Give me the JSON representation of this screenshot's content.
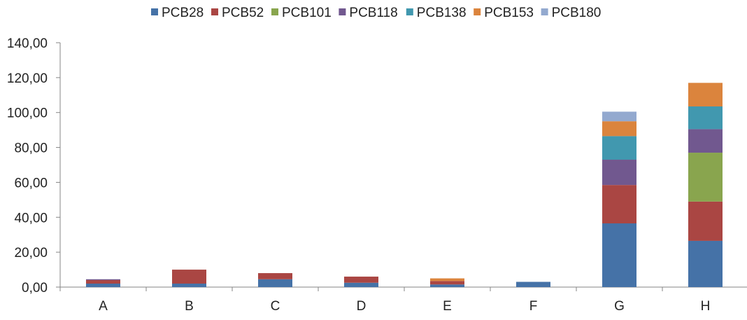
{
  "chart_data": {
    "type": "bar",
    "stacked": true,
    "categories": [
      "A",
      "B",
      "C",
      "D",
      "E",
      "F",
      "G",
      "H"
    ],
    "series": [
      {
        "name": "PCB28",
        "color": "#4572A7",
        "values": [
          2.0,
          2.0,
          4.5,
          2.5,
          1.5,
          3.0,
          36.5,
          26.5
        ]
      },
      {
        "name": "PCB52",
        "color": "#AA4643",
        "values": [
          2.0,
          8.0,
          3.5,
          3.5,
          2.0,
          0.0,
          22.0,
          22.5
        ]
      },
      {
        "name": "PCB101",
        "color": "#89A54E",
        "values": [
          0.0,
          0.0,
          0.0,
          0.0,
          0.0,
          0.0,
          0.0,
          28.0
        ]
      },
      {
        "name": "PCB118",
        "color": "#71588F",
        "values": [
          0.5,
          0.0,
          0.0,
          0.0,
          0.0,
          0.0,
          14.5,
          13.5
        ]
      },
      {
        "name": "PCB138",
        "color": "#4198AF",
        "values": [
          0.0,
          0.0,
          0.0,
          0.0,
          0.0,
          0.0,
          13.5,
          13.0
        ]
      },
      {
        "name": "PCB153",
        "color": "#DB843D",
        "values": [
          0.0,
          0.0,
          0.0,
          0.0,
          1.5,
          0.0,
          8.5,
          13.5
        ]
      },
      {
        "name": "PCB180",
        "color": "#93A9CF",
        "values": [
          0.0,
          0.0,
          0.0,
          0.0,
          0.0,
          0.0,
          5.5,
          0.0
        ]
      }
    ],
    "yticks": [
      "0,00",
      "20,00",
      "40,00",
      "60,00",
      "80,00",
      "100,00",
      "120,00",
      "140,00"
    ],
    "ylim": [
      0,
      140
    ],
    "ystep": 20,
    "xlabel": "",
    "ylabel": "",
    "title": "",
    "legend_position": "top",
    "grid": false
  }
}
